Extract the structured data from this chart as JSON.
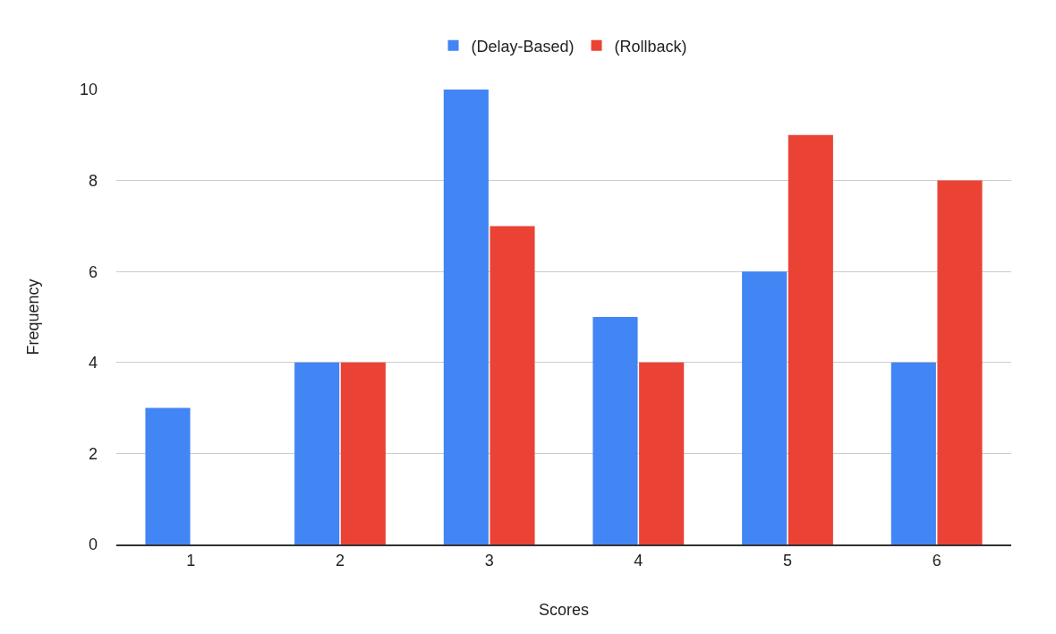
{
  "chart_data": {
    "type": "bar",
    "xlabel": "Scores",
    "ylabel": "Frequency",
    "categories": [
      "1",
      "2",
      "3",
      "4",
      "5",
      "6"
    ],
    "series": [
      {
        "name": "(Delay-Based)",
        "color": "#4285f4",
        "values": [
          3,
          4,
          10,
          5,
          6,
          4
        ]
      },
      {
        "name": "(Rollback)",
        "color": "#ea4335",
        "values": [
          0,
          4,
          7,
          4,
          9,
          8
        ]
      }
    ],
    "ylim": [
      0,
      10
    ],
    "yticks": [
      0,
      2,
      4,
      6,
      8,
      10
    ],
    "grid": "y",
    "legend": "top"
  }
}
